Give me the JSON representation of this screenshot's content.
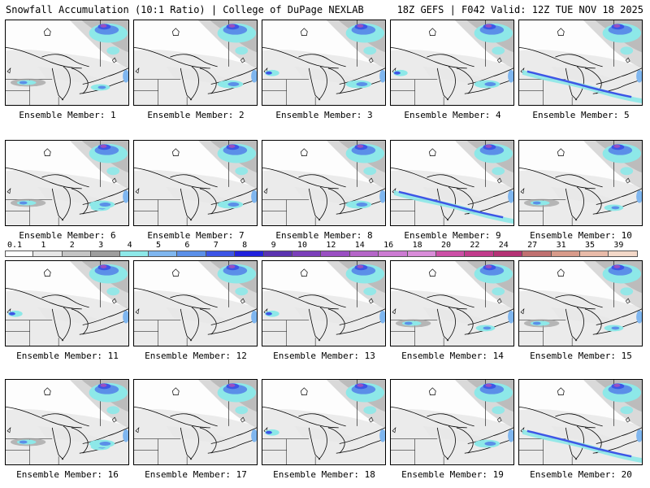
{
  "header": {
    "title_left": "Snowfall Accumulation (10:1 Ratio) | College of DuPage NEXLAB",
    "title_right": "18Z GEFS | F042 Valid: 12Z TUE NOV 18 2025"
  },
  "legend": {
    "levels": [
      "0.1",
      "1",
      "2",
      "3",
      "4",
      "5",
      "6",
      "7",
      "8",
      "9",
      "10",
      "12",
      "14",
      "16",
      "18",
      "20",
      "22",
      "24",
      "27",
      "31",
      "35",
      "39"
    ],
    "colors": [
      "#ffffff",
      "#e6e6e6",
      "#c4c4c4",
      "#9e9e9e",
      "#8de8e8",
      "#7fb6ef",
      "#5b8fe8",
      "#3d55e6",
      "#2222dd",
      "#5b33b0",
      "#7b3fba",
      "#9a4fc2",
      "#b565c8",
      "#cc7ad2",
      "#d98cd9",
      "#cc4fa6",
      "#c23c8c",
      "#b53275",
      "#c07070",
      "#d89a8a",
      "#e8baa8",
      "#f3d8c8"
    ]
  },
  "panels": [
    {
      "label": "Ensemble Member: 1",
      "blobs": [
        "ne",
        "sw"
      ]
    },
    {
      "label": "Ensemble Member: 2",
      "blobs": [
        "ne",
        "e"
      ]
    },
    {
      "label": "Ensemble Member: 3",
      "blobs": [
        "ne",
        "e",
        "w"
      ]
    },
    {
      "label": "Ensemble Member: 4",
      "blobs": [
        "ne",
        "e",
        "w"
      ]
    },
    {
      "label": "Ensemble Member: 5",
      "blobs": [
        "ne",
        "band"
      ]
    },
    {
      "label": "Ensemble Member: 6",
      "blobs": [
        "ne",
        "sw",
        "e"
      ]
    },
    {
      "label": "Ensemble Member: 7",
      "blobs": [
        "ne",
        "e"
      ]
    },
    {
      "label": "Ensemble Member: 8",
      "blobs": [
        "ne",
        "e"
      ]
    },
    {
      "label": "Ensemble Member: 9",
      "blobs": [
        "ne",
        "band"
      ]
    },
    {
      "label": "Ensemble Member: 10",
      "blobs": [
        "ne",
        "sw"
      ]
    },
    {
      "label": "Ensemble Member: 11",
      "blobs": [
        "ne",
        "w"
      ]
    },
    {
      "label": "Ensemble Member: 12",
      "blobs": [
        "ne"
      ]
    },
    {
      "label": "Ensemble Member: 13",
      "blobs": [
        "ne",
        "w"
      ]
    },
    {
      "label": "Ensemble Member: 14",
      "blobs": [
        "ne",
        "sw"
      ]
    },
    {
      "label": "Ensemble Member: 15",
      "blobs": [
        "ne",
        "sw"
      ]
    },
    {
      "label": "Ensemble Member: 16",
      "blobs": [
        "ne",
        "sw",
        "e"
      ]
    },
    {
      "label": "Ensemble Member: 17",
      "blobs": [
        "ne"
      ]
    },
    {
      "label": "Ensemble Member: 18",
      "blobs": [
        "ne",
        "w"
      ]
    },
    {
      "label": "Ensemble Member: 19",
      "blobs": [
        "ne",
        "e"
      ]
    },
    {
      "label": "Ensemble Member: 20",
      "blobs": [
        "ne",
        "band"
      ]
    }
  ]
}
